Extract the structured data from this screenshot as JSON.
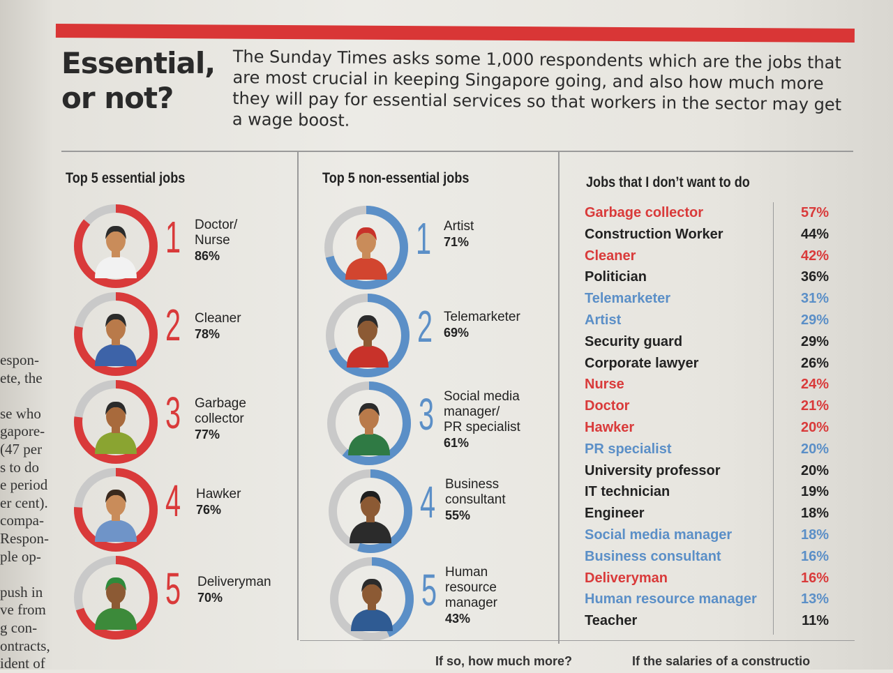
{
  "headline": "Essential, or not?",
  "intro": "The Sunday Times asks some 1,000 respondents which are the jobs that are most crucial in keeping Singapore going, and also how much more they will pay for essential services so that workers in the sector may get a wage boost.",
  "colors": {
    "red": "#d93a3a",
    "blue": "#5b8fc7",
    "gray": "#c9c9c9",
    "black": "#222222"
  },
  "essential": {
    "title": "Top 5 essential jobs",
    "items": [
      {
        "rank": "1",
        "line1": "Doctor/",
        "line2": "Nurse",
        "pct": "86%",
        "value": 86
      },
      {
        "rank": "2",
        "line1": "Cleaner",
        "line2": "",
        "pct": "78%",
        "value": 78
      },
      {
        "rank": "3",
        "line1": "Garbage",
        "line2": "collector",
        "pct": "77%",
        "value": 77
      },
      {
        "rank": "4",
        "line1": "Hawker",
        "line2": "",
        "pct": "76%",
        "value": 76
      },
      {
        "rank": "5",
        "line1": "Deliveryman",
        "line2": "",
        "pct": "70%",
        "value": 70
      }
    ]
  },
  "nonessential": {
    "title": "Top 5 non-essential jobs",
    "items": [
      {
        "rank": "1",
        "line1": "Artist",
        "line2": "",
        "line3": "",
        "pct": "71%",
        "value": 71
      },
      {
        "rank": "2",
        "line1": "Telemarketer",
        "line2": "",
        "line3": "",
        "pct": "69%",
        "value": 69
      },
      {
        "rank": "3",
        "line1": "Social media",
        "line2": "manager/",
        "line3": "PR specialist",
        "pct": "61%",
        "value": 61
      },
      {
        "rank": "4",
        "line1": "Business",
        "line2": "consultant",
        "line3": "",
        "pct": "55%",
        "value": 55
      },
      {
        "rank": "5",
        "line1": "Human",
        "line2": "resource",
        "line3": "manager",
        "pct": "43%",
        "value": 43
      }
    ]
  },
  "dontwant": {
    "title": "Jobs that I don’t want to do",
    "rows": [
      {
        "job": "Garbage collector",
        "pct": "57%",
        "color": "red"
      },
      {
        "job": "Construction Worker",
        "pct": "44%",
        "color": "black"
      },
      {
        "job": "Cleaner",
        "pct": "42%",
        "color": "red"
      },
      {
        "job": "Politician",
        "pct": "36%",
        "color": "black"
      },
      {
        "job": "Telemarketer",
        "pct": "31%",
        "color": "blue"
      },
      {
        "job": "Artist",
        "pct": "29%",
        "color": "blue"
      },
      {
        "job": "Security guard",
        "pct": "29%",
        "color": "black"
      },
      {
        "job": "Corporate lawyer",
        "pct": "26%",
        "color": "black"
      },
      {
        "job": "Nurse",
        "pct": "24%",
        "color": "red"
      },
      {
        "job": "Doctor",
        "pct": "21%",
        "color": "red"
      },
      {
        "job": "Hawker",
        "pct": "20%",
        "color": "red"
      },
      {
        "job": "PR specialist",
        "pct": "20%",
        "color": "blue"
      },
      {
        "job": "University professor",
        "pct": "20%",
        "color": "black"
      },
      {
        "job": "IT technician",
        "pct": "19%",
        "color": "black"
      },
      {
        "job": "Engineer",
        "pct": "18%",
        "color": "black"
      },
      {
        "job": "Social media manager",
        "pct": "18%",
        "color": "blue"
      },
      {
        "job": "Business consultant",
        "pct": "16%",
        "color": "blue"
      },
      {
        "job": "Deliveryman",
        "pct": "16%",
        "color": "red"
      },
      {
        "job": "Human resource manager",
        "pct": "13%",
        "color": "blue"
      },
      {
        "job": "Teacher",
        "pct": "11%",
        "color": "black"
      }
    ]
  },
  "margin_lines": [
    "espon-",
    "ete, the",
    "",
    "se who",
    "gapore-",
    "(47 per",
    "s to do",
    "e period",
    "er cent).",
    "compa-",
    "Respon-",
    "ple op-",
    "",
    "push in",
    "ve from",
    "g con-",
    "ontracts,",
    "ident of"
  ],
  "bottom": {
    "teaser1": "If so, how much more?",
    "teaser2": "If the salaries of a constructio"
  }
}
